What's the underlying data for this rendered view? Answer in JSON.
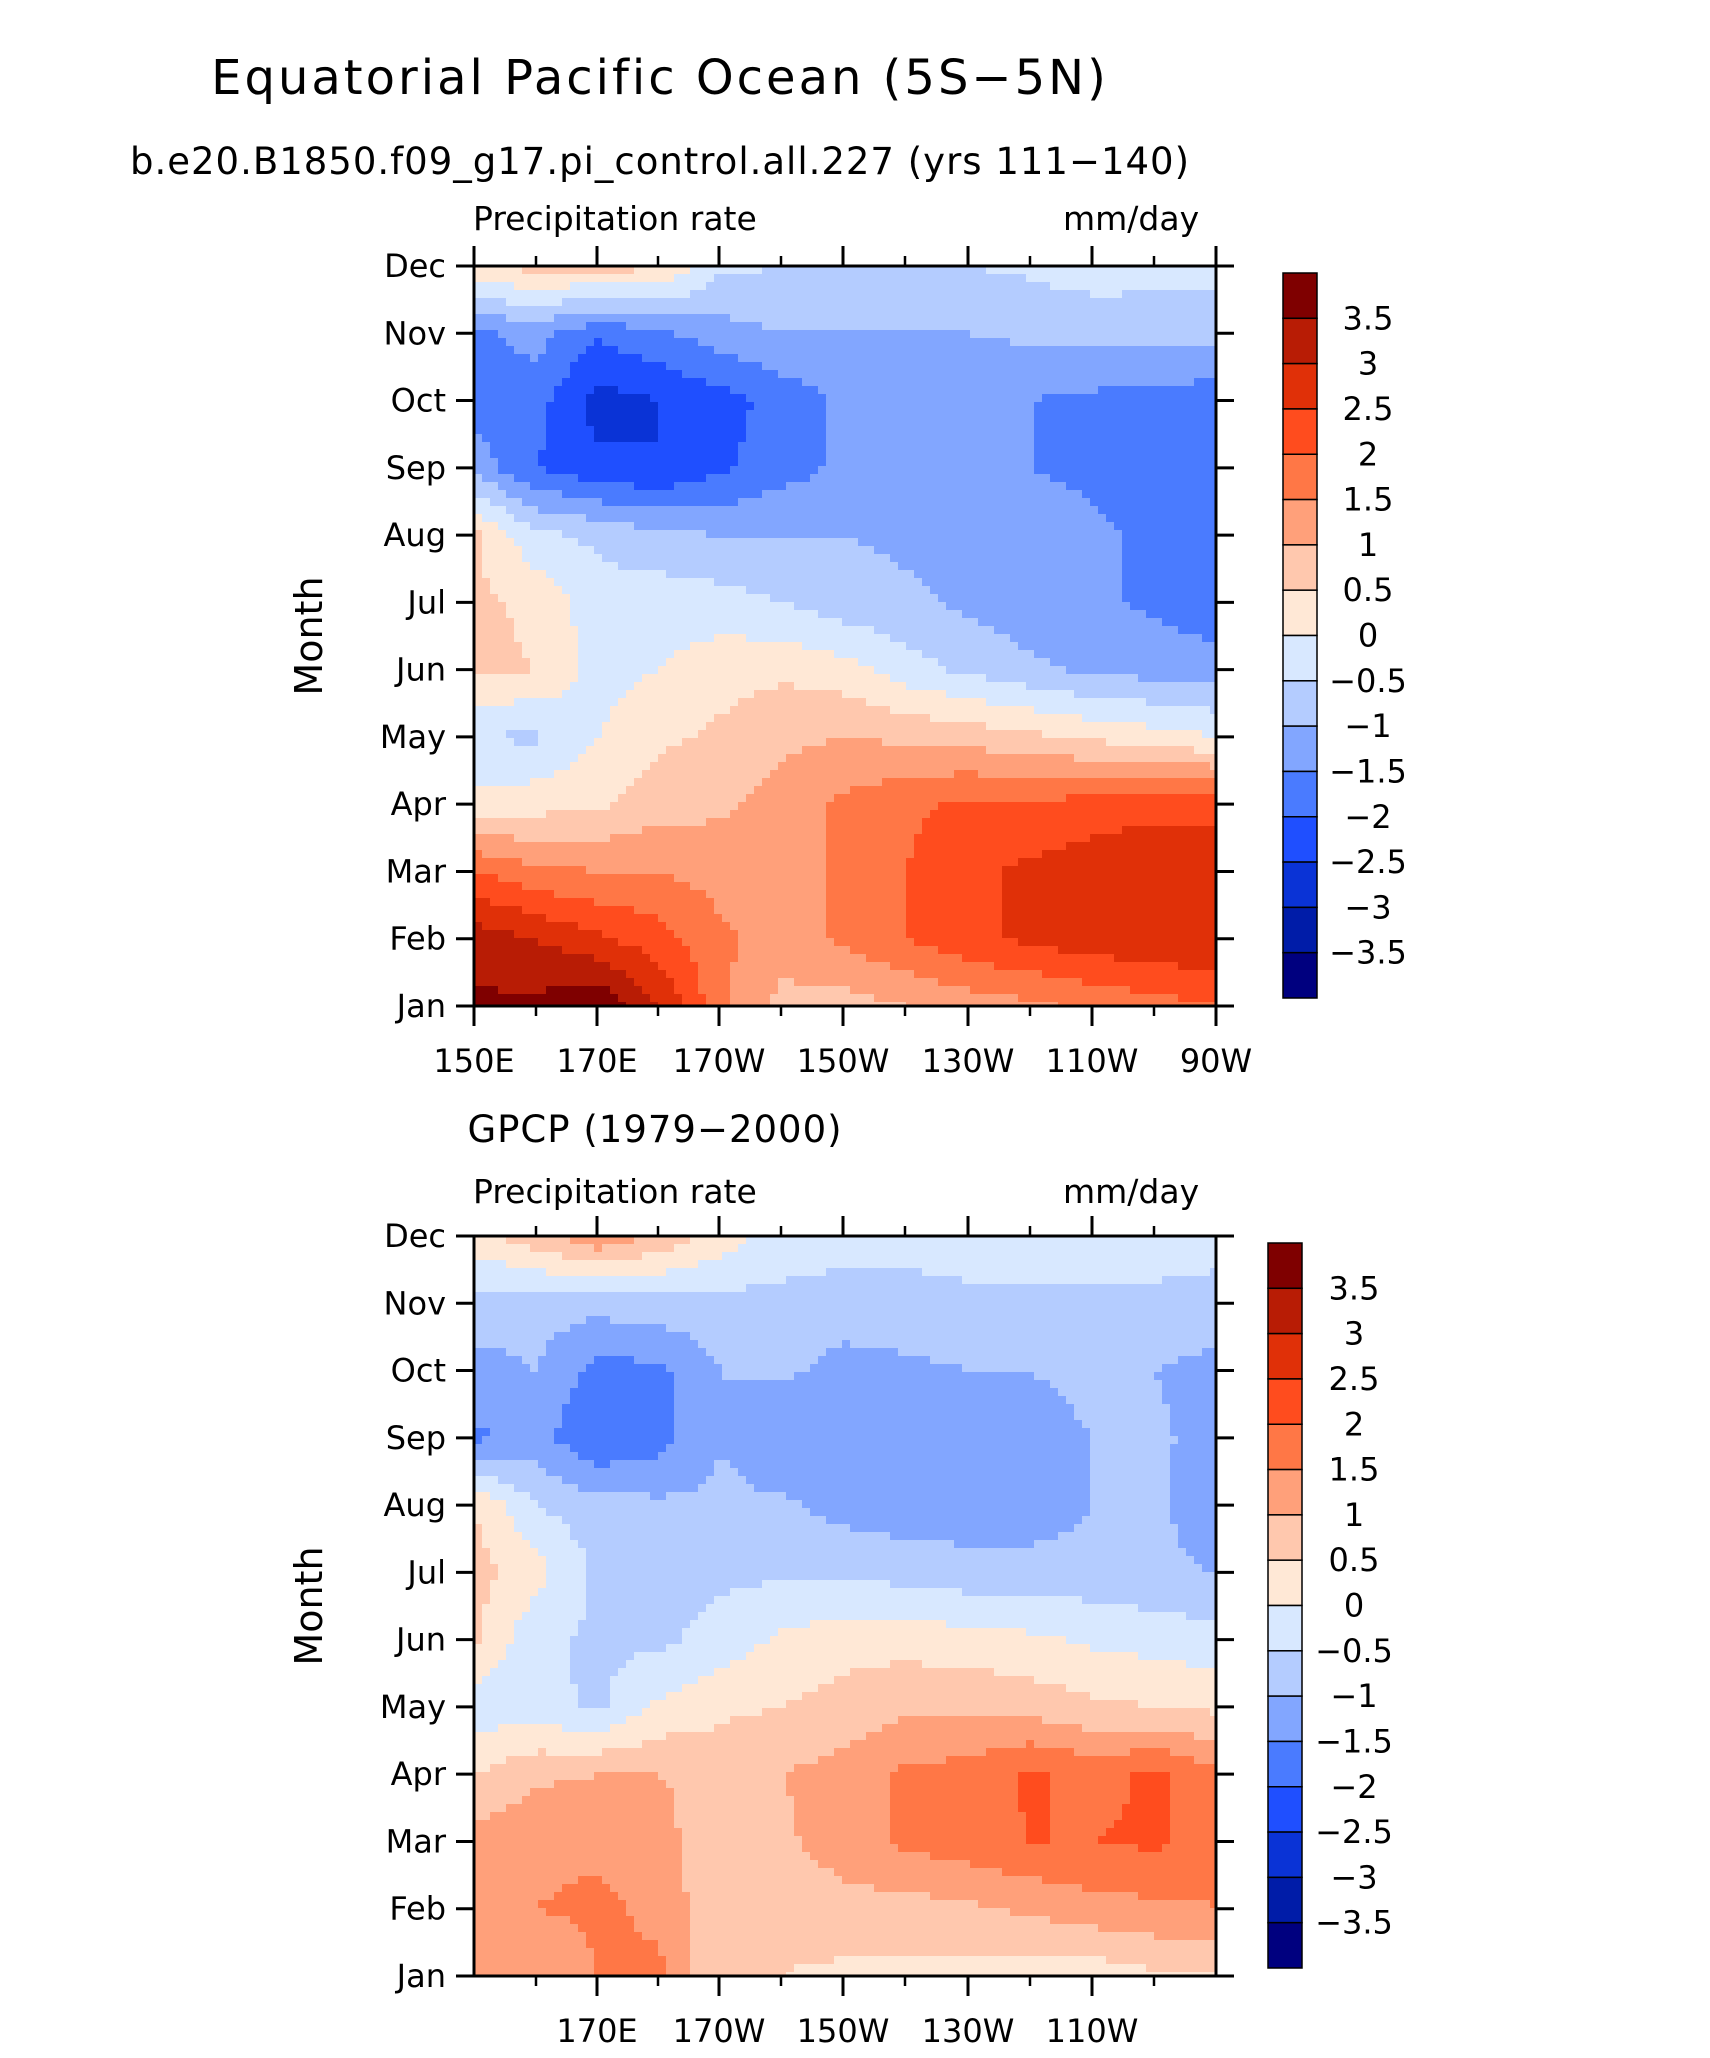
{
  "header": {
    "title": "Equatorial Pacific Ocean (5S−5N)",
    "subtitle": "b.e20.B1850.f09_g17.pi_control.all.227 (yrs 111−140)"
  },
  "chart_data": [
    {
      "type": "heatmap",
      "panel_title": "",
      "left_label": "Precipitation rate",
      "right_label": "mm/day",
      "ylabel": "Month",
      "xlabel": "",
      "x_tick_labels": [
        "150E",
        "170E",
        "170W",
        "150W",
        "130W",
        "110W",
        "90W"
      ],
      "y_tick_labels": [
        "Jan",
        "Feb",
        "Mar",
        "Apr",
        "May",
        "Jun",
        "Jul",
        "Aug",
        "Sep",
        "Oct",
        "Nov",
        "Dec"
      ],
      "colorbar_labels": [
        "3.5",
        "3",
        "2.5",
        "2",
        "1.5",
        "1",
        "0.5",
        "0",
        "−0.5",
        "−1",
        "−1.5",
        "−2",
        "−2.5",
        "−3",
        "−3.5"
      ],
      "levels": [
        -3.5,
        -3,
        -2.5,
        -2,
        -1.5,
        -1,
        -0.5,
        0,
        0.5,
        1,
        1.5,
        2,
        2.5,
        3,
        3.5
      ],
      "x_lon_degE": [
        150,
        160,
        170,
        180,
        190,
        200,
        210,
        220,
        230,
        240,
        250,
        260,
        270
      ],
      "z_rows_jan_to_dec": [
        [
          3.6,
          3.6,
          4.0,
          3.0,
          1.6,
          0.8,
          0.8,
          1.0,
          1.2,
          1.4,
          1.6,
          1.8,
          2.0
        ],
        [
          3.3,
          3.0,
          2.6,
          2.2,
          1.6,
          1.3,
          1.6,
          2.0,
          2.4,
          2.6,
          2.8,
          2.9,
          3.0
        ],
        [
          2.0,
          1.6,
          1.5,
          1.5,
          1.3,
          1.2,
          1.6,
          2.0,
          2.4,
          2.6,
          2.8,
          3.0,
          3.0
        ],
        [
          0.2,
          0.3,
          0.4,
          0.8,
          0.9,
          1.2,
          1.6,
          1.9,
          2.1,
          2.1,
          2.2,
          2.3,
          2.3
        ],
        [
          -0.5,
          -0.6,
          0.0,
          0.4,
          0.6,
          0.9,
          1.0,
          0.9,
          0.8,
          0.6,
          0.4,
          0.2,
          0.0
        ],
        [
          0.6,
          0.5,
          -0.2,
          0.0,
          0.3,
          0.4,
          0.2,
          -0.3,
          -0.6,
          -0.9,
          -1.1,
          -1.2,
          -1.3
        ],
        [
          0.6,
          0.4,
          -0.3,
          -0.2,
          -0.3,
          -0.5,
          -0.8,
          -0.9,
          -1.1,
          -1.3,
          -1.4,
          -1.6,
          -1.8
        ],
        [
          0.6,
          -0.4,
          -0.6,
          -0.9,
          -1.0,
          -1.0,
          -1.0,
          -1.1,
          -1.2,
          -1.3,
          -1.4,
          -1.6,
          -1.8
        ],
        [
          -1.2,
          -2.0,
          -2.4,
          -2.5,
          -2.1,
          -1.7,
          -1.4,
          -1.3,
          -1.4,
          -1.5,
          -1.6,
          -1.8,
          -1.9
        ],
        [
          -1.8,
          -1.8,
          -2.7,
          -2.5,
          -2.2,
          -1.8,
          -1.4,
          -1.3,
          -1.4,
          -1.5,
          -1.6,
          -1.7,
          -1.8
        ],
        [
          -1.6,
          -1.3,
          -1.9,
          -1.6,
          -1.2,
          -1.0,
          -1.0,
          -1.0,
          -1.0,
          -0.9,
          -0.9,
          -0.8,
          -0.8
        ],
        [
          0.4,
          0.7,
          0.7,
          0.6,
          -0.4,
          -0.5,
          -0.5,
          -0.5,
          -0.5,
          -0.4,
          -0.2,
          -0.3,
          -0.3
        ]
      ]
    },
    {
      "type": "heatmap",
      "panel_title": "GPCP (1979−2000)",
      "left_label": "Precipitation rate",
      "right_label": "mm/day",
      "ylabel": "Month",
      "xlabel": "",
      "x_tick_labels": [
        "170E",
        "170W",
        "150W",
        "130W",
        "110W"
      ],
      "y_tick_labels": [
        "Jan",
        "Feb",
        "Mar",
        "Apr",
        "May",
        "Jun",
        "Jul",
        "Aug",
        "Sep",
        "Oct",
        "Nov",
        "Dec"
      ],
      "colorbar_labels": [
        "3.5",
        "3",
        "2.5",
        "2",
        "1.5",
        "1",
        "0.5",
        "0",
        "−0.5",
        "−1",
        "−1.5",
        "−2",
        "−2.5",
        "−3",
        "−3.5"
      ],
      "levels": [
        -3.5,
        -3,
        -2.5,
        -2,
        -1.5,
        -1,
        -0.5,
        0,
        0.5,
        1,
        1.5,
        2,
        2.5,
        3,
        3.5
      ],
      "x_lon_degE": [
        150,
        160,
        170,
        180,
        190,
        200,
        210,
        220,
        230,
        240,
        250,
        260,
        270
      ],
      "z_rows_jan_to_dec": [
        [
          1.0,
          1.0,
          1.5,
          1.6,
          0.5,
          0.5,
          0.4,
          0.4,
          0.3,
          0.2,
          0.2,
          0.4,
          0.5
        ],
        [
          1.0,
          1.5,
          1.6,
          1.4,
          0.5,
          0.6,
          0.8,
          0.8,
          0.9,
          1.1,
          1.3,
          1.4,
          1.5
        ],
        [
          1.2,
          1.4,
          1.4,
          1.2,
          0.6,
          0.9,
          1.3,
          1.6,
          1.8,
          2.0,
          2.0,
          2.1,
          1.6
        ],
        [
          0.5,
          0.9,
          1.0,
          1.0,
          0.8,
          1.0,
          1.2,
          1.6,
          1.7,
          2.1,
          1.8,
          2.1,
          1.6
        ],
        [
          -0.3,
          -0.3,
          -0.6,
          0.1,
          0.4,
          0.5,
          0.7,
          0.9,
          0.9,
          0.8,
          0.6,
          0.5,
          0.4
        ],
        [
          0.6,
          -0.4,
          -0.6,
          -0.6,
          -0.3,
          0.1,
          0.3,
          0.3,
          0.2,
          0.1,
          -0.1,
          -0.2,
          -0.3
        ],
        [
          0.7,
          0.2,
          -0.6,
          -0.8,
          -0.6,
          -0.6,
          -0.6,
          -0.7,
          -0.8,
          -0.8,
          -0.8,
          -0.9,
          -1.0
        ],
        [
          0.5,
          -0.5,
          -0.8,
          -0.9,
          -0.9,
          -0.9,
          -1.2,
          -1.3,
          -1.3,
          -1.3,
          -1.0,
          -0.9,
          -1.3
        ],
        [
          -1.6,
          -1.3,
          -2.0,
          -1.7,
          -1.0,
          -1.5,
          -1.3,
          -1.3,
          -1.3,
          -1.3,
          -1.0,
          -0.9,
          -1.2
        ],
        [
          -1.2,
          -1.0,
          -1.7,
          -1.6,
          -1.0,
          -0.9,
          -1.2,
          -1.1,
          -1.0,
          -1.0,
          -0.8,
          -1.0,
          -1.2
        ],
        [
          -0.7,
          -0.8,
          -0.8,
          -0.7,
          -0.7,
          -0.6,
          -0.7,
          -0.7,
          -0.6,
          -0.6,
          -0.6,
          -0.6,
          -0.6
        ],
        [
          0.3,
          0.8,
          1.4,
          0.9,
          0.3,
          -0.3,
          -0.3,
          -0.3,
          -0.3,
          -0.3,
          -0.3,
          -0.3,
          -0.4
        ]
      ]
    }
  ],
  "colors": {
    "palette": [
      "#00007f",
      "#001ca8",
      "#0a33d6",
      "#1f4fff",
      "#4a7bff",
      "#82a6ff",
      "#b4ccff",
      "#d8e8ff",
      "#ffe8d6",
      "#ffc8ae",
      "#ffa07a",
      "#ff7746",
      "#ff4c1e",
      "#e03008",
      "#b81c05",
      "#7f0000"
    ]
  }
}
